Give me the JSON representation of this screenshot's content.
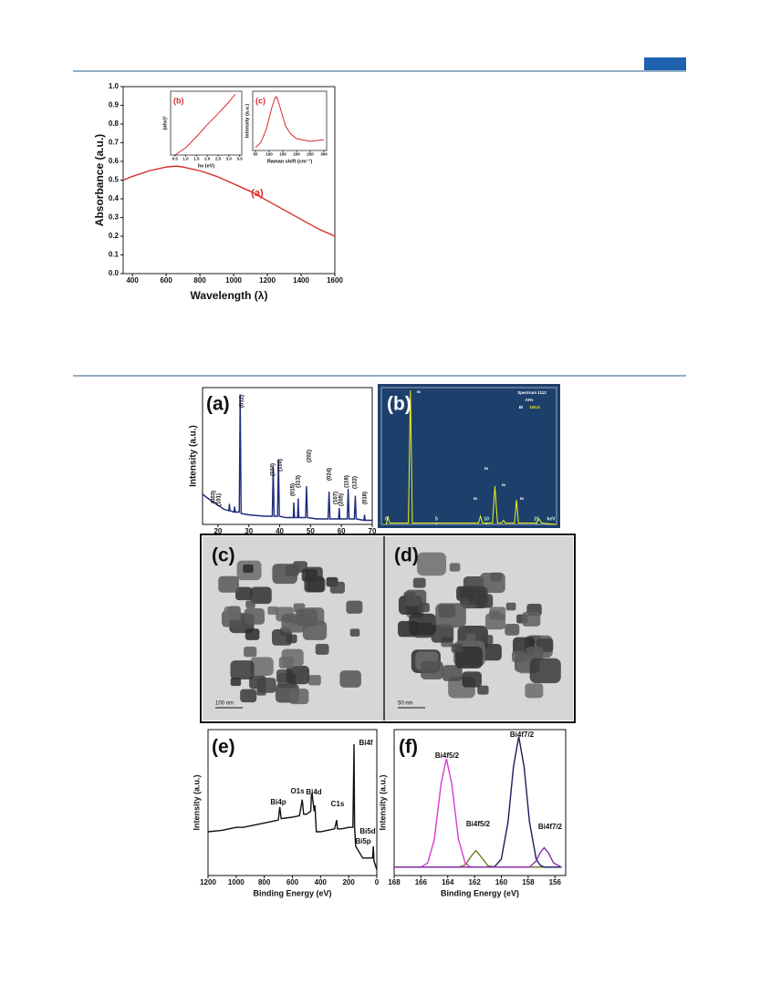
{
  "chart_data": [
    {
      "type": "line",
      "x_label": "Wavelength (λ)",
      "y_label": "Absorbance (a.u.)",
      "xlim": [
        345,
        1600
      ],
      "xticks": [
        400,
        600,
        800,
        1000,
        1200,
        1400,
        1600
      ],
      "ylim": [
        0,
        1
      ],
      "yticks": [
        {
          "value": 0,
          "label": "0.0"
        },
        0.1,
        0.2,
        0.3,
        0.4,
        0.5,
        0.6,
        0.7,
        0.8,
        0.9,
        {
          "value": 1,
          "label": "1.0"
        }
      ],
      "x": [
        345,
        400,
        500,
        600,
        660,
        700,
        800,
        900,
        1000,
        1100,
        1200,
        1300,
        1400,
        1500,
        1600
      ],
      "series": [
        {
          "color": "#d9292b",
          "values": [
            0.5,
            0.52,
            0.55,
            0.57,
            0.575,
            0.57,
            0.55,
            0.52,
            0.48,
            0.44,
            0.39,
            0.34,
            0.29,
            0.24,
            0.2
          ]
        }
      ],
      "annotations": [
        "(a)"
      ]
    },
    {
      "type": "line",
      "label": "(b)",
      "x_label": "hν (eV)",
      "y_label": "(αhν)²",
      "xlim": [
        0.3,
        3.6
      ],
      "xticks": [
        0.5,
        {
          "value": 1,
          "label": "1.0"
        },
        1.5,
        {
          "value": 2,
          "label": "2.0"
        },
        2.5,
        {
          "value": 3,
          "label": "3.0"
        },
        3.5
      ],
      "ylim": [
        0,
        1.05
      ],
      "x": [
        0.5,
        1.0,
        1.5,
        2.0,
        2.5,
        3.0,
        3.3
      ],
      "series": [
        {
          "color": "#d9292b",
          "values": [
            0.0,
            0.12,
            0.3,
            0.5,
            0.68,
            0.87,
            1.0
          ]
        }
      ]
    },
    {
      "type": "line",
      "label": "(c)",
      "x_label": "Raman shift (cm⁻¹)",
      "y_label": "Intensity (a.u.)",
      "xlim": [
        40,
        310
      ],
      "xticks": [
        50,
        100,
        150,
        200,
        250,
        300
      ],
      "ylim": [
        0,
        1.1
      ],
      "x": [
        50,
        70,
        90,
        100,
        110,
        120,
        125,
        130,
        140,
        160,
        180,
        200,
        250,
        300
      ],
      "series": [
        {
          "color": "#d9292b",
          "values": [
            0.05,
            0.15,
            0.4,
            0.6,
            0.8,
            0.95,
            1.0,
            0.97,
            0.8,
            0.45,
            0.3,
            0.22,
            0.17,
            0.2
          ]
        }
      ]
    },
    {
      "type": "line",
      "label": "(a)",
      "x_label": "2θ (deg)",
      "y_label": "Intensity (a.u.)",
      "xlim": [
        15,
        70
      ],
      "xticks": [
        20,
        30,
        40,
        50,
        60,
        70
      ],
      "ylim": [
        0,
        100
      ],
      "x": [
        15,
        18,
        20,
        22,
        23.5,
        23.7,
        23.9,
        25.2,
        25.4,
        25.6,
        26.9,
        27.2,
        27.5,
        30,
        35,
        37.6,
        37.9,
        38.2,
        39.3,
        39.6,
        39.9,
        42,
        44.4,
        44.6,
        44.8,
        45.8,
        46.0,
        46.2,
        48.4,
        48.7,
        49.0,
        52,
        55.7,
        56.0,
        56.3,
        59.1,
        59.3,
        59.5,
        61.9,
        62.2,
        62.5,
        64.2,
        64.5,
        64.8,
        67.3,
        67.5,
        67.7,
        70
      ],
      "series": [
        {
          "color": "#1e2a7a",
          "values": [
            22,
            17,
            14,
            11,
            10,
            15,
            10,
            9,
            13,
            9,
            9,
            95,
            8,
            7,
            6,
            6,
            42,
            6,
            6,
            47,
            6,
            5,
            5,
            16,
            5,
            5,
            19,
            5,
            5,
            28,
            5,
            4,
            4,
            24,
            4,
            4,
            12,
            4,
            4,
            26,
            4,
            4,
            21,
            4,
            3,
            7,
            3,
            3
          ]
        }
      ],
      "annotations": [
        "(003)",
        "(101)",
        "(012)",
        "(104)",
        "(110)",
        "(015)",
        "(113)",
        "(202)",
        "(024)",
        "(107)",
        "(205)",
        "(116)",
        "(122)",
        "(018)"
      ]
    },
    {
      "type": "line",
      "label": "(b)",
      "x_label": "keV",
      "xlim": [
        -0.5,
        17
      ],
      "xticks": [
        0,
        5,
        10,
        15
      ],
      "ylim": [
        0,
        100
      ],
      "background": "#1d3f6b",
      "x": [
        0,
        0.15,
        0.25,
        0.35,
        0.5,
        2.2,
        2.4,
        2.6,
        3.0,
        9.2,
        9.4,
        9.6,
        10.6,
        10.84,
        11.1,
        11.5,
        11.7,
        11.9,
        12.8,
        13.0,
        13.2,
        15.0,
        15.25,
        15.5,
        17
      ],
      "series": [
        {
          "color": "#f2f21a",
          "values": [
            0,
            6,
            3,
            1,
            1,
            1,
            98,
            1,
            1,
            1,
            6,
            1,
            1,
            28,
            1,
            1,
            3,
            1,
            1,
            18,
            1,
            1,
            4,
            1,
            0
          ]
        }
      ],
      "annotations": [
        "Spectrum 1112",
        "At%",
        "Bi",
        "100.0",
        "Bi",
        "Bi",
        "Bi",
        "Bi",
        "Bi"
      ]
    },
    {
      "type": "line",
      "label": "(e)",
      "x_label": "Binding Energy (eV)",
      "y_label": "Intensity (a.u.)",
      "xlim": [
        1200,
        0
      ],
      "xticks": [
        1200,
        1000,
        800,
        600,
        400,
        200,
        0
      ],
      "ylim": [
        0,
        100
      ],
      "x": [
        1200,
        1100,
        1000,
        950,
        900,
        800,
        700,
        690,
        680,
        600,
        550,
        530,
        520,
        500,
        470,
        465,
        460,
        445,
        440,
        430,
        400,
        300,
        285,
        280,
        250,
        200,
        170,
        162,
        158,
        150,
        100,
        30,
        25,
        20,
        0
      ],
      "series": [
        {
          "color": "#111111",
          "values": [
            30,
            31,
            33,
            33,
            34,
            36,
            38,
            47,
            39,
            40,
            41,
            52,
            42,
            42,
            44,
            55,
            56,
            44,
            48,
            30,
            30,
            32,
            38,
            32,
            32,
            33,
            33,
            90,
            33,
            20,
            12,
            12,
            20,
            10,
            4
          ]
        }
      ],
      "annotations": [
        "Bi4f",
        "O1s",
        "Bi4d",
        "Bi4p",
        "C1s",
        "Bi5d",
        "Bi5p"
      ]
    },
    {
      "type": "line",
      "label": "(f)",
      "x_label": "Binding Energy (eV)",
      "y_label": "Intensity (a.u.)",
      "xlim": [
        168,
        155.2
      ],
      "xticks": [
        168,
        166,
        164,
        162,
        160,
        158,
        156
      ],
      "ylim": [
        0,
        105
      ],
      "x": [
        168,
        167,
        166,
        165.5,
        165,
        164.5,
        164.1,
        163.7,
        163.2,
        162.7,
        162.3,
        161.9,
        161.5,
        161,
        160.5,
        160,
        159.5,
        159.1,
        158.7,
        158.3,
        157.9,
        157.4,
        157.1,
        156.8,
        156.5,
        156.1,
        155.5
      ],
      "series": [
        {
          "color": "#d63cd6",
          "values": [
            6,
            6,
            6,
            9,
            26,
            66,
            84,
            66,
            26,
            9,
            6,
            6,
            6,
            6,
            6,
            6,
            6,
            6,
            6,
            6,
            6,
            6,
            6,
            6,
            6,
            6,
            6
          ]
        },
        {
          "color": "#7a7a1e",
          "values": [
            6,
            6,
            6,
            6,
            6,
            6,
            6,
            6,
            6,
            7.6,
            13.3,
            18,
            13.3,
            7,
            6,
            6,
            6,
            6,
            6,
            6,
            6,
            6,
            6,
            6,
            6,
            6,
            6
          ]
        },
        {
          "color": "#1c1c5c",
          "values": [
            6,
            6,
            6,
            6,
            6,
            6,
            6,
            6,
            6,
            6,
            6,
            6,
            6,
            6,
            6.4,
            11.8,
            38.6,
            78,
            100,
            78,
            38.6,
            11.8,
            7.4,
            6,
            6,
            6,
            6
          ]
        },
        {
          "color": "#8b2aa8",
          "values": [
            6,
            6,
            6,
            6,
            6,
            6,
            6,
            6,
            6,
            6,
            6,
            6,
            6,
            6,
            6,
            6,
            6,
            6,
            6,
            6,
            6,
            10.5,
            16.5,
            20,
            16.5,
            9,
            6
          ]
        }
      ],
      "annotations": [
        "Bi4f5/2",
        "Bi4f5/2",
        "Bi4f7/2",
        "Bi4f7/2"
      ]
    }
  ],
  "images": [
    {
      "label": "(c)",
      "scale_bar": "100 nm"
    },
    {
      "label": "(d)",
      "scale_bar": "50 nm"
    }
  ]
}
